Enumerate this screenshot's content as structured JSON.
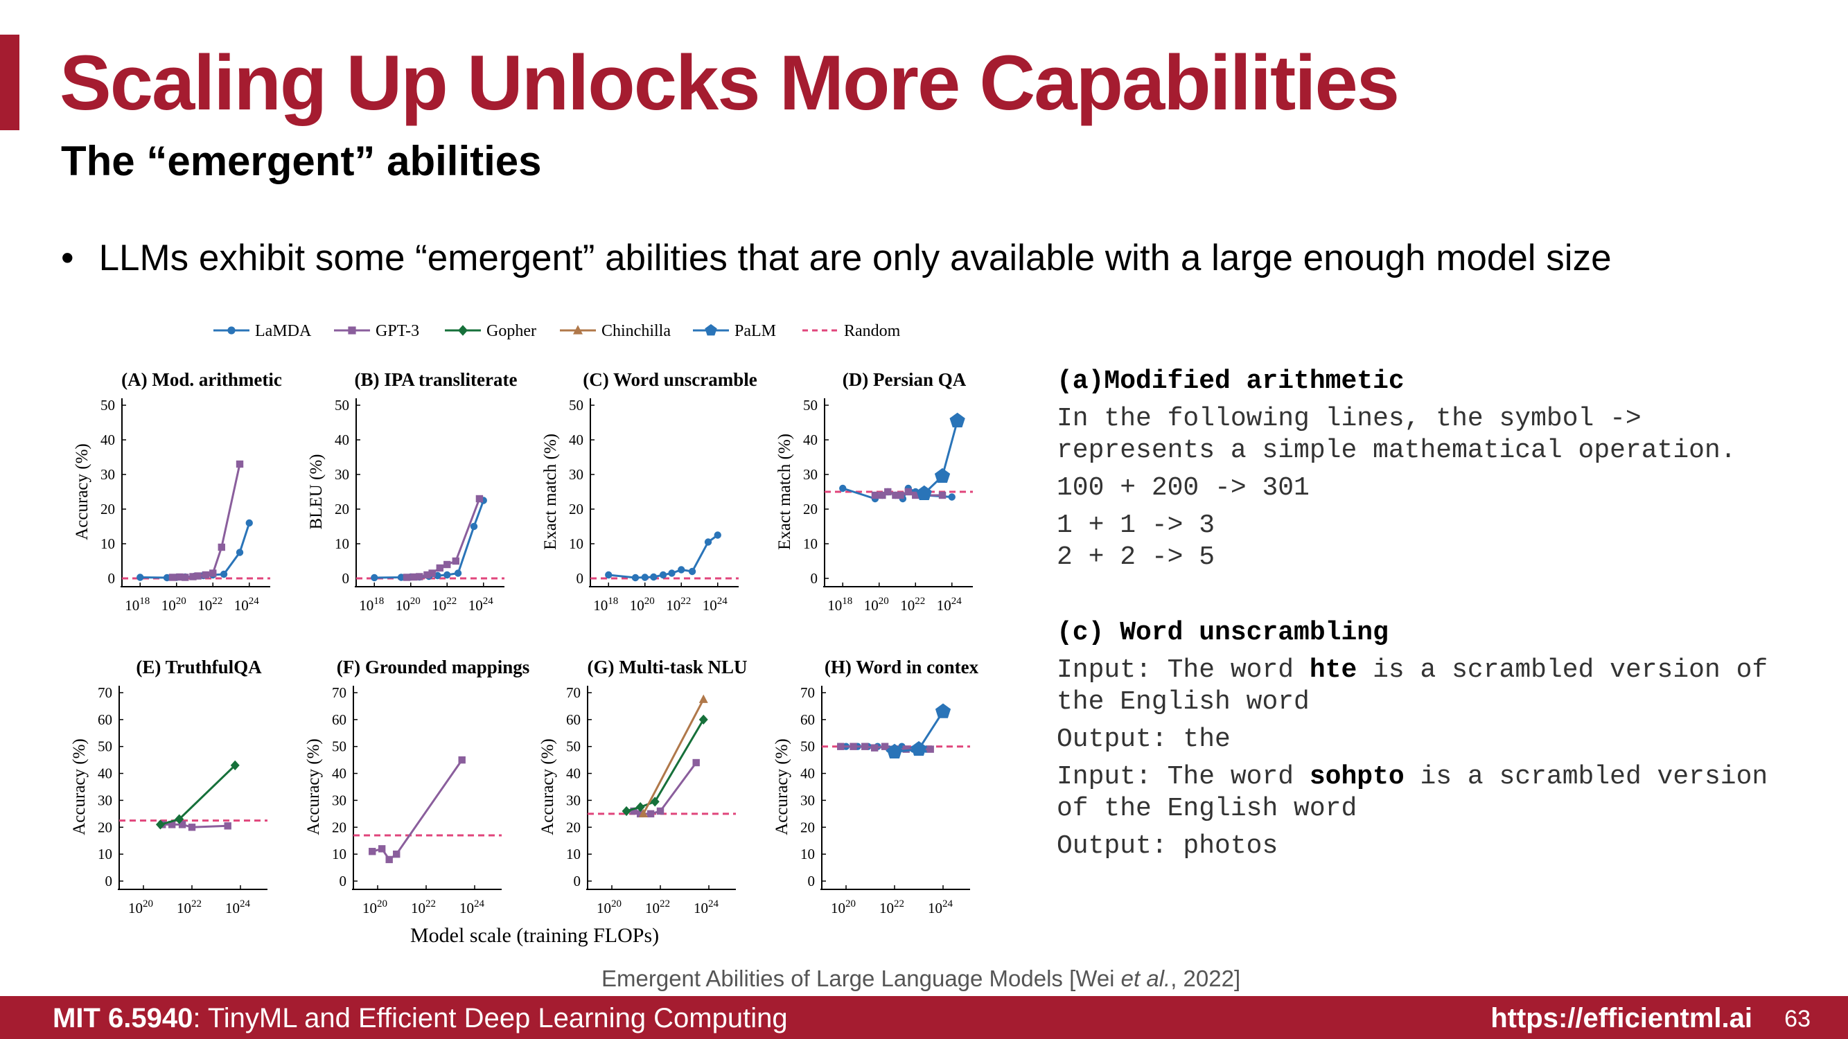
{
  "slide": {
    "title": "Scaling Up Unlocks More Capabilities",
    "subtitle": "The “emergent” abilities",
    "bullet": "LLMs exhibit some “emergent” abilities that are only available with a large enough model size",
    "bullet_symbol": "•",
    "citation_prefix": "Emergent Abilities of Large Language Models [Wei ",
    "citation_italic": "et al.",
    "citation_suffix": ", 2022]",
    "shared_xlabel": "Model scale (training FLOPs)"
  },
  "footer": {
    "course_bold": "MIT 6.5940",
    "course_rest": ": TinyML and Efficient Deep Learning Computing",
    "url": "https://efficientml.ai",
    "page": "63"
  },
  "examples": {
    "a_header": "(a)Modified arithmetic",
    "a_lines": [
      "In the following lines, the symbol ->",
      "represents a simple mathematical operation.",
      "100 + 200 -> 301",
      "1 + 1 -> 3",
      "2 + 2 -> 5"
    ],
    "c_header": "(c) Word unscrambling",
    "c_l1_pre": "Input: The word ",
    "c_l1_bold": "hte",
    "c_l1_post": " is a scrambled version of",
    "c_l2": "the English word",
    "c_l3": "Output: the",
    "c_l4_pre": "Input: The word ",
    "c_l4_bold": "sohpto",
    "c_l4_post": " is a scrambled version",
    "c_l5": "of the English word",
    "c_l6": "Output: photos"
  },
  "colors": {
    "accent": "#a51c30",
    "LaMDA": "#2a74b8",
    "GPT-3": "#8a5e9c",
    "Gopher": "#16703a",
    "Chinchilla": "#b0784a",
    "PaLM": "#2a74b8",
    "Random": "#e0457b"
  },
  "legend": [
    {
      "name": "LaMDA",
      "marker": "circle"
    },
    {
      "name": "GPT-3",
      "marker": "square"
    },
    {
      "name": "Gopher",
      "marker": "diamond"
    },
    {
      "name": "Chinchilla",
      "marker": "triangle"
    },
    {
      "name": "PaLM",
      "marker": "pentagon"
    },
    {
      "name": "Random",
      "marker": "dashed"
    }
  ],
  "chart_data": [
    {
      "type": "line",
      "title": "(A) Mod. arithmetic",
      "ylabel": "Accuracy (%)",
      "xscale": "log",
      "xlim": [
        1e+17,
        1e+25
      ],
      "ylim": [
        0,
        50
      ],
      "yticks": [
        0,
        10,
        20,
        30,
        40,
        50
      ],
      "xticks": [
        18,
        20,
        22,
        24
      ],
      "random": 0,
      "series": [
        {
          "name": "LaMDA",
          "x": [
            1e+18,
            3e+19,
            1e+20,
            3e+20,
            1e+21,
            3e+21,
            1e+22,
            4e+22,
            3e+23,
            1e+24
          ],
          "y": [
            0.3,
            0.2,
            0.3,
            0.4,
            0.6,
            0.8,
            1.0,
            1.2,
            7.5,
            16
          ]
        },
        {
          "name": "GPT-3",
          "x": [
            6e+19,
            1.5e+20,
            3e+20,
            8e+20,
            1.5e+21,
            4e+21,
            1e+22,
            3e+22,
            3e+23
          ],
          "y": [
            0.3,
            0.4,
            0.3,
            0.5,
            0.7,
            1.0,
            1.5,
            9,
            33
          ]
        }
      ]
    },
    {
      "type": "line",
      "title": "(B) IPA transliterate",
      "ylabel": "BLEU (%)",
      "xscale": "log",
      "xlim": [
        1e+17,
        1e+25
      ],
      "ylim": [
        0,
        50
      ],
      "yticks": [
        0,
        10,
        20,
        30,
        40,
        50
      ],
      "xticks": [
        18,
        20,
        22,
        24
      ],
      "random": 0,
      "series": [
        {
          "name": "LaMDA",
          "x": [
            1e+18,
            3e+19,
            1e+20,
            3e+20,
            1e+21,
            3e+21,
            1e+22,
            4e+22,
            3e+23,
            1e+24
          ],
          "y": [
            0.2,
            0.3,
            0.4,
            0.4,
            0.6,
            0.8,
            1.0,
            1.5,
            15,
            22.5
          ]
        },
        {
          "name": "GPT-3",
          "x": [
            6e+19,
            1.5e+20,
            3e+20,
            8e+20,
            1.5e+21,
            4e+21,
            1e+22,
            3e+22,
            6e+23
          ],
          "y": [
            0.3,
            0.4,
            0.5,
            1.0,
            1.5,
            3,
            4,
            5,
            23
          ]
        }
      ]
    },
    {
      "type": "line",
      "title": "(C) Word unscramble",
      "ylabel": "Exact match (%)",
      "xscale": "log",
      "xlim": [
        1e+17,
        1e+25
      ],
      "ylim": [
        0,
        50
      ],
      "yticks": [
        0,
        10,
        20,
        30,
        40,
        50
      ],
      "xticks": [
        18,
        20,
        22,
        24
      ],
      "random": 0,
      "series": [
        {
          "name": "LaMDA",
          "x": [
            1e+18,
            3e+19,
            1e+20,
            3e+20,
            1e+21,
            3e+21,
            1e+22,
            4e+22,
            3e+23,
            1e+24
          ],
          "y": [
            1,
            0.2,
            0.3,
            0.4,
            1.0,
            1.5,
            2.5,
            2,
            10.5,
            12.5
          ]
        }
      ]
    },
    {
      "type": "line",
      "title": "(D) Persian QA",
      "ylabel": "Exact match (%)",
      "xscale": "log",
      "xlim": [
        1e+17,
        1e+25
      ],
      "ylim": [
        0,
        50
      ],
      "yticks": [
        0,
        10,
        20,
        30,
        40,
        50
      ],
      "xticks": [
        18,
        20,
        22,
        24
      ],
      "random": 25,
      "series": [
        {
          "name": "LaMDA",
          "x": [
            1e+18,
            6e+19,
            1.5e+20,
            3e+20,
            8e+20,
            2e+21,
            4e+21,
            1e+22,
            3e+22,
            1e+24
          ],
          "y": [
            26,
            23,
            24,
            25,
            24,
            23,
            26,
            25,
            24,
            23.5
          ]
        },
        {
          "name": "GPT-3",
          "x": [
            6e+19,
            1.5e+20,
            3e+20,
            8e+20,
            1.5e+21,
            4e+21,
            1e+22,
            3e+22,
            3e+23
          ],
          "y": [
            24,
            24,
            25,
            24,
            24,
            25,
            24,
            24,
            24
          ]
        },
        {
          "name": "PaLM",
          "x": [
            3e+22,
            3e+23,
            2e+24
          ],
          "y": [
            24.5,
            29.5,
            45.5
          ]
        }
      ]
    },
    {
      "type": "line",
      "title": "(E) TruthfulQA",
      "ylabel": "Accuracy (%)",
      "xscale": "log",
      "xlim": [
        1e+19,
        1e+25
      ],
      "ylim": [
        0,
        70
      ],
      "yticks": [
        0,
        10,
        20,
        30,
        40,
        50,
        60,
        70
      ],
      "xticks": [
        20,
        22,
        24
      ],
      "random": 22.5,
      "series": [
        {
          "name": "GPT-3",
          "x": [
            6e+20,
            1.5e+21,
            4e+21,
            1e+22,
            3e+23
          ],
          "y": [
            21,
            21,
            21,
            20,
            20.5
          ]
        },
        {
          "name": "Gopher",
          "x": [
            5e+20,
            3e+21,
            6e+23
          ],
          "y": [
            21,
            23,
            43
          ]
        }
      ]
    },
    {
      "type": "line",
      "title": "(F) Grounded mappings",
      "ylabel": "Accuracy (%)",
      "xscale": "log",
      "xlim": [
        1e+19,
        1e+25
      ],
      "ylim": [
        0,
        70
      ],
      "yticks": [
        0,
        10,
        20,
        30,
        40,
        50,
        60,
        70
      ],
      "xticks": [
        20,
        22,
        24
      ],
      "random": 17,
      "series": [
        {
          "name": "GPT-3",
          "x": [
            6e+19,
            1.5e+20,
            3e+20,
            6e+20,
            3e+23
          ],
          "y": [
            11,
            12,
            8,
            10,
            45
          ]
        }
      ]
    },
    {
      "type": "line",
      "title": "(G) Multi-task NLU",
      "ylabel": "Accuracy (%)",
      "xscale": "log",
      "xlim": [
        1e+19,
        1e+25
      ],
      "ylim": [
        0,
        70
      ],
      "yticks": [
        0,
        10,
        20,
        30,
        40,
        50,
        60,
        70
      ],
      "xticks": [
        20,
        22,
        24
      ],
      "random": 25,
      "series": [
        {
          "name": "GPT-3",
          "x": [
            8e+20,
            1.5e+21,
            4e+21,
            1e+22,
            3e+23
          ],
          "y": [
            26,
            25,
            25,
            26,
            44
          ]
        },
        {
          "name": "Gopher",
          "x": [
            4e+20,
            1.5e+21,
            6e+21,
            6e+23
          ],
          "y": [
            26,
            27.5,
            29.5,
            60
          ]
        },
        {
          "name": "Chinchilla",
          "x": [
            2e+21,
            6e+23
          ],
          "y": [
            25,
            67.5
          ]
        }
      ]
    },
    {
      "type": "line",
      "title": "(H) Word in contex",
      "ylabel": "Accuracy (%)",
      "xscale": "log",
      "xlim": [
        1e+19,
        1e+25
      ],
      "ylim": [
        0,
        70
      ],
      "yticks": [
        0,
        10,
        20,
        30,
        40,
        50,
        60,
        70
      ],
      "xticks": [
        20,
        22,
        24
      ],
      "random": 50,
      "series": [
        {
          "name": "LaMDA",
          "x": [
            1e+20,
            3e+20,
            8e+20,
            2e+21,
            6e+21,
            2e+22,
            6e+22,
            2e+23
          ],
          "y": [
            50,
            50,
            50,
            50,
            49,
            50,
            49,
            49
          ]
        },
        {
          "name": "GPT-3",
          "x": [
            6e+19,
            2e+20,
            6e+20,
            1.5e+21,
            4e+21,
            1e+22,
            3e+22,
            3e+23
          ],
          "y": [
            50,
            50,
            50,
            49.5,
            50,
            49,
            49,
            49
          ]
        },
        {
          "name": "PaLM",
          "x": [
            1e+22,
            1e+23,
            1e+24
          ],
          "y": [
            48,
            49,
            63
          ]
        }
      ]
    }
  ]
}
